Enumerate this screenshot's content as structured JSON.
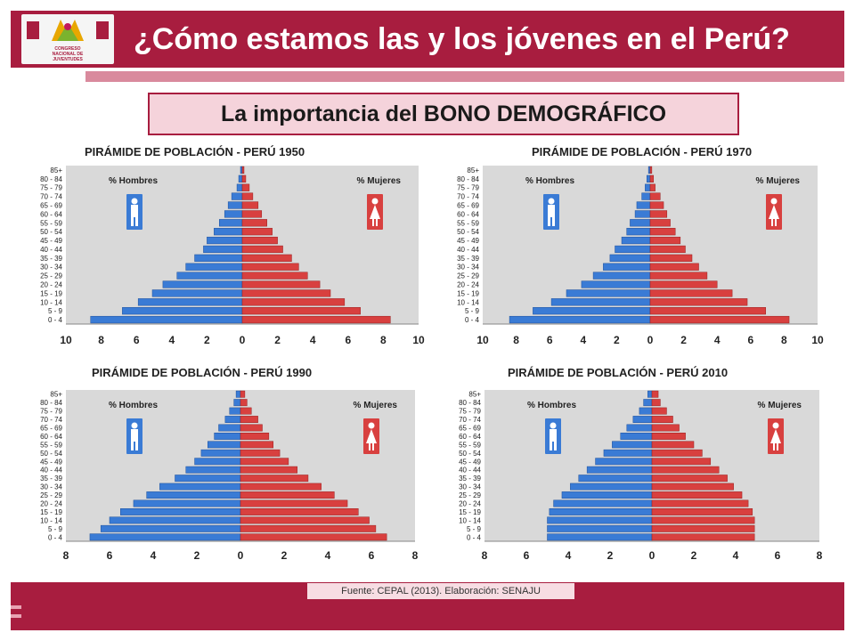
{
  "header": {
    "title": "¿Cómo estamos las y los jóvenes en el Perú?",
    "logo_text": "CONGRESO\nNACIONAL DE\nJUVENTUDES"
  },
  "subtitle": "La importancia del BONO DEMOGRÁFICO",
  "source": "Fuente: CEPAL (2013). Elaboración: SENAJU",
  "colors": {
    "men": "#3a7bd5",
    "women": "#d8403f",
    "plot_bg": "#d9d9d9"
  },
  "chart_data": [
    {
      "type": "bar",
      "title": "PIRÁMIDE DE POBLACIÓN - PERÚ 1950",
      "categories": [
        "0 -  4",
        "5 -  9",
        "10 - 14",
        "15 - 19",
        "20 - 24",
        "25 - 29",
        "30 - 34",
        "35 - 39",
        "40 - 44",
        "45 - 49",
        "50 - 54",
        "55 - 59",
        "60 - 64",
        "65 - 69",
        "70 - 74",
        "75 - 79",
        "80 - 84",
        "85+"
      ],
      "series": [
        {
          "name": "% Hombres",
          "values": [
            8.6,
            6.8,
            5.9,
            5.1,
            4.5,
            3.7,
            3.2,
            2.7,
            2.2,
            2.0,
            1.6,
            1.3,
            1.0,
            0.8,
            0.6,
            0.3,
            0.2,
            0.1
          ]
        },
        {
          "name": "% Mujeres",
          "values": [
            8.4,
            6.7,
            5.8,
            5.0,
            4.4,
            3.7,
            3.2,
            2.8,
            2.3,
            2.0,
            1.7,
            1.4,
            1.1,
            0.9,
            0.6,
            0.4,
            0.2,
            0.1
          ]
        }
      ],
      "xticks": [
        "10",
        "8",
        "6",
        "4",
        "2",
        "0",
        "2",
        "4",
        "6",
        "8",
        "10"
      ],
      "xlim": [
        -10,
        10
      ]
    },
    {
      "type": "bar",
      "title": "PIRÁMIDE DE POBLACIÓN - PERÚ 1970",
      "categories": [
        "0 -  4",
        "5 -  9",
        "10 - 14",
        "15 - 19",
        "20 - 24",
        "25 - 29",
        "30 - 34",
        "35 - 39",
        "40 - 44",
        "45 - 49",
        "50 - 54",
        "55 - 59",
        "60 - 64",
        "65 - 69",
        "70 - 74",
        "75 - 79",
        "80 - 84",
        "85+"
      ],
      "series": [
        {
          "name": "% Hombres",
          "values": [
            8.4,
            7.0,
            5.9,
            5.0,
            4.1,
            3.4,
            2.8,
            2.4,
            2.1,
            1.7,
            1.4,
            1.2,
            0.9,
            0.8,
            0.5,
            0.3,
            0.2,
            0.1
          ]
        },
        {
          "name": "% Mujeres",
          "values": [
            8.3,
            6.9,
            5.8,
            4.9,
            4.0,
            3.4,
            2.9,
            2.5,
            2.1,
            1.8,
            1.5,
            1.2,
            1.0,
            0.8,
            0.6,
            0.3,
            0.2,
            0.1
          ]
        }
      ],
      "xticks": [
        "10",
        "8",
        "6",
        "4",
        "2",
        "0",
        "2",
        "4",
        "6",
        "8",
        "10"
      ],
      "xlim": [
        -10,
        10
      ]
    },
    {
      "type": "bar",
      "title": "PIRÁMIDE DE POBLACIÓN - PERÚ 1990",
      "categories": [
        "0 -  4",
        "5 -  9",
        "10 - 14",
        "15 - 19",
        "20 - 24",
        "25 - 29",
        "30 - 34",
        "35 - 39",
        "40 - 44",
        "45 - 49",
        "50 - 54",
        "55 - 59",
        "60 - 64",
        "65 - 69",
        "70 - 74",
        "75 - 79",
        "80 - 84",
        "85+"
      ],
      "series": [
        {
          "name": "% Hombres",
          "values": [
            6.9,
            6.4,
            6.0,
            5.5,
            4.9,
            4.3,
            3.7,
            3.0,
            2.5,
            2.1,
            1.8,
            1.5,
            1.2,
            1.0,
            0.7,
            0.5,
            0.3,
            0.2
          ]
        },
        {
          "name": "% Mujeres",
          "values": [
            6.7,
            6.2,
            5.9,
            5.4,
            4.9,
            4.3,
            3.7,
            3.1,
            2.6,
            2.2,
            1.8,
            1.5,
            1.3,
            1.0,
            0.8,
            0.5,
            0.3,
            0.2
          ]
        }
      ],
      "xticks": [
        "8",
        "6",
        "4",
        "2",
        "0",
        "2",
        "4",
        "6",
        "8"
      ],
      "xlim": [
        -8,
        8
      ]
    },
    {
      "type": "bar",
      "title": "PIRÁMIDE DE POBLACIÓN - PERÚ 2010",
      "categories": [
        "0 -  4",
        "5 -  9",
        "10 - 14",
        "15 - 19",
        "20 - 24",
        "25 - 29",
        "30 - 34",
        "35 - 39",
        "40 - 44",
        "45 - 49",
        "50 - 54",
        "55 - 59",
        "60 - 64",
        "65 - 69",
        "70 - 74",
        "75 - 79",
        "80 - 84",
        "85+"
      ],
      "series": [
        {
          "name": "% Hombres",
          "values": [
            5.0,
            5.0,
            5.0,
            4.9,
            4.7,
            4.3,
            3.9,
            3.5,
            3.1,
            2.7,
            2.3,
            1.9,
            1.5,
            1.2,
            0.9,
            0.6,
            0.4,
            0.2
          ]
        },
        {
          "name": "% Mujeres",
          "values": [
            4.9,
            4.9,
            4.9,
            4.8,
            4.6,
            4.3,
            3.9,
            3.6,
            3.2,
            2.8,
            2.4,
            2.0,
            1.6,
            1.3,
            1.0,
            0.7,
            0.4,
            0.3
          ]
        }
      ],
      "xticks": [
        "8",
        "6",
        "4",
        "2",
        "0",
        "2",
        "4",
        "6",
        "8"
      ],
      "xlim": [
        -8,
        8
      ]
    }
  ]
}
